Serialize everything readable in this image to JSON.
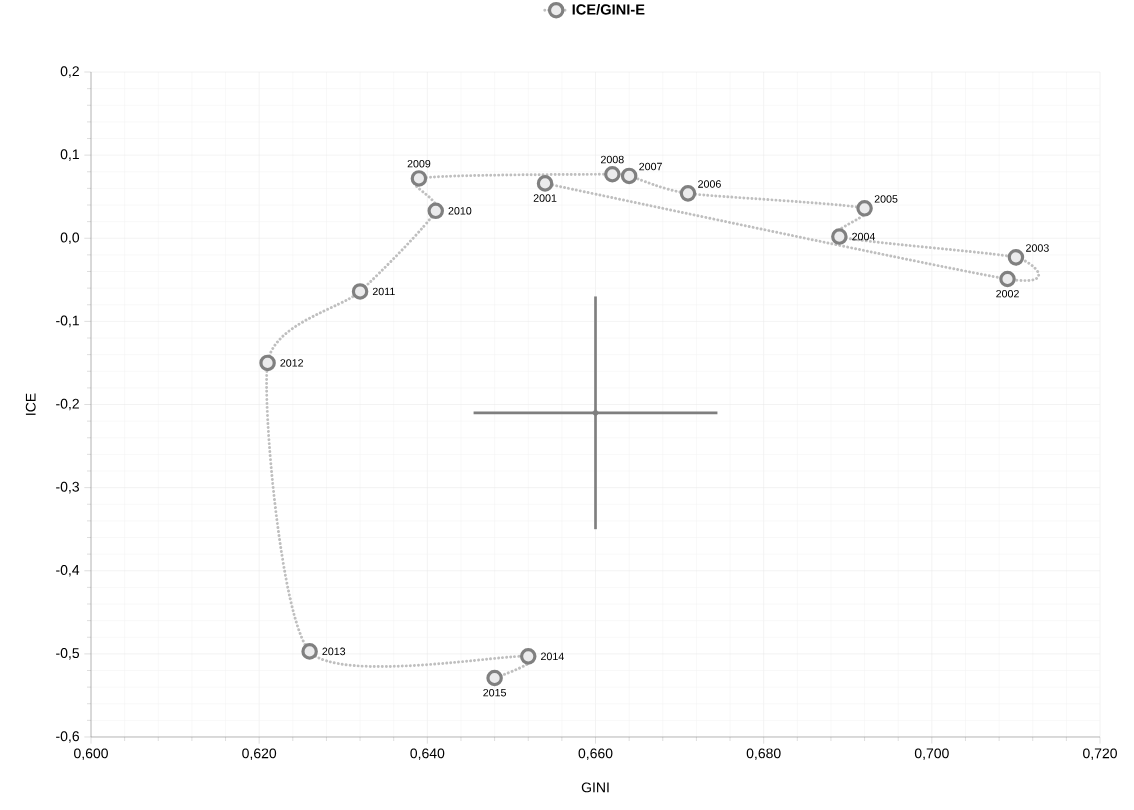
{
  "chart_data": {
    "type": "line",
    "xlabel": "GINI",
    "ylabel": "ICE",
    "xlim": [
      0.6,
      0.72
    ],
    "ylim": [
      -0.6,
      0.2
    ],
    "xticks": [
      {
        "value": 0.6,
        "label": "0,600"
      },
      {
        "value": 0.62,
        "label": "0,620"
      },
      {
        "value": 0.64,
        "label": "0,640"
      },
      {
        "value": 0.66,
        "label": "0,660"
      },
      {
        "value": 0.68,
        "label": "0,680"
      },
      {
        "value": 0.7,
        "label": "0,700"
      },
      {
        "value": 0.72,
        "label": "0,720"
      }
    ],
    "yticks": [
      {
        "value": -0.6,
        "label": "-0,6"
      },
      {
        "value": -0.5,
        "label": "-0,5"
      },
      {
        "value": -0.4,
        "label": "-0,4"
      },
      {
        "value": -0.3,
        "label": "-0,3"
      },
      {
        "value": -0.2,
        "label": "-0,2"
      },
      {
        "value": -0.1,
        "label": "-0,1"
      },
      {
        "value": 0.0,
        "label": "0,0"
      },
      {
        "value": 0.1,
        "label": "0,1"
      },
      {
        "value": 0.2,
        "label": "0,2"
      }
    ],
    "grid": true,
    "legend": "top",
    "series": [
      {
        "name": "ICE/GINI-E",
        "color": "#bfbfbf",
        "marker": "circle",
        "line_style": "dotted",
        "x": [
          0.654,
          0.709,
          0.71,
          0.689,
          0.692,
          0.671,
          0.664,
          0.662,
          0.639,
          0.641,
          0.632,
          0.621,
          0.626,
          0.652,
          0.648
        ],
        "values": [
          0.066,
          -0.049,
          -0.023,
          0.002,
          0.036,
          0.054,
          0.075,
          0.077,
          0.072,
          0.033,
          -0.064,
          -0.15,
          -0.497,
          -0.503,
          -0.529
        ]
      },
      {
        "type": "scatter",
        "color": "#7f7f7f",
        "marker": "none",
        "x": [
          0.66
        ],
        "values": [
          -0.21
        ],
        "errors": [
          0.14
        ],
        "xerrors": [
          0.0145
        ]
      }
    ],
    "annotations": [
      {
        "text": "2001",
        "x": 0.654,
        "y": 0.066
      },
      {
        "text": "2002",
        "x": 0.709,
        "y": -0.049
      },
      {
        "text": "2003",
        "x": 0.71,
        "y": -0.023
      },
      {
        "text": "2004",
        "x": 0.689,
        "y": 0.002
      },
      {
        "text": "2005",
        "x": 0.692,
        "y": 0.036
      },
      {
        "text": "2006",
        "x": 0.671,
        "y": 0.054
      },
      {
        "text": "2007",
        "x": 0.664,
        "y": 0.075
      },
      {
        "text": "2008",
        "x": 0.662,
        "y": 0.077
      },
      {
        "text": "2009",
        "x": 0.639,
        "y": 0.072
      },
      {
        "text": "2010",
        "x": 0.641,
        "y": 0.033
      },
      {
        "text": "2011",
        "x": 0.632,
        "y": -0.064
      },
      {
        "text": "2012",
        "x": 0.621,
        "y": -0.15
      },
      {
        "text": "2013",
        "x": 0.626,
        "y": -0.497
      },
      {
        "text": "2014",
        "x": 0.652,
        "y": -0.503
      },
      {
        "text": "2015",
        "x": 0.648,
        "y": -0.529
      }
    ]
  }
}
